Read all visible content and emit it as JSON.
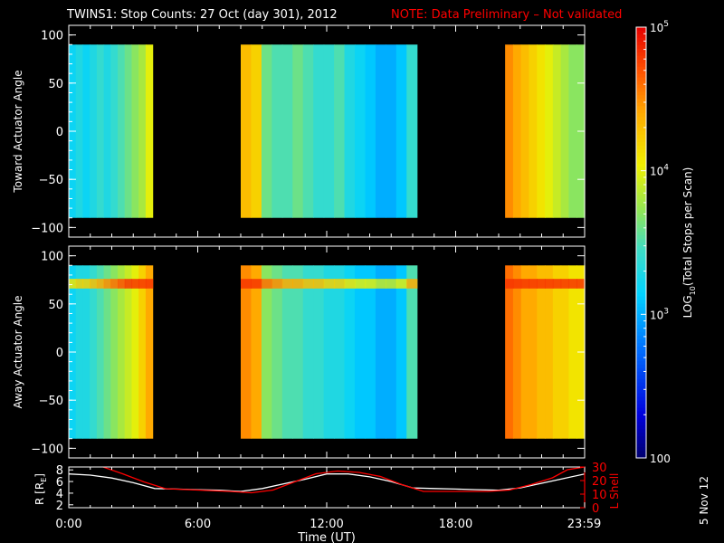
{
  "title": {
    "main": "TWINS1: Stop Counts: 27 Oct (day 301), 2012",
    "note": "NOTE: Data Preliminary – Not validated",
    "note_color": "#ff0000"
  },
  "stamp": "5 Nov 12",
  "chart_data": [
    {
      "type": "heatmap",
      "name": "toward",
      "ylabel": "Toward Actuator Angle",
      "ylim": [
        -110,
        110
      ],
      "yticks": [
        "100",
        "50",
        "0",
        "−50",
        "−100"
      ],
      "yticks_values": [
        100,
        50,
        0,
        -50,
        -100
      ],
      "angle_range": [
        -90,
        90
      ],
      "x_hours_range": [
        0,
        24
      ],
      "data_blocks": [
        {
          "start_h": 0.0,
          "end_h": 3.9,
          "log_counts": [
            3.2,
            3.3,
            3.2,
            3.3,
            3.4,
            3.3,
            3.4,
            3.5,
            3.6,
            3.7,
            3.8,
            4.0
          ]
        },
        {
          "start_h": 8.0,
          "end_h": 16.2,
          "log_counts": [
            4.3,
            4.2,
            3.6,
            3.5,
            3.5,
            3.6,
            3.5,
            3.4,
            3.4,
            3.5,
            3.3,
            3.2,
            3.1,
            3.0,
            3.0,
            3.1,
            3.4
          ]
        },
        {
          "start_h": 20.3,
          "end_h": 24.0,
          "log_counts": [
            4.5,
            4.4,
            4.3,
            4.2,
            4.1,
            4.0,
            3.9,
            3.8,
            3.7,
            3.7
          ]
        }
      ]
    },
    {
      "type": "heatmap",
      "name": "away",
      "ylabel": "Away Actuator Angle",
      "ylim": [
        -110,
        110
      ],
      "yticks": [
        "100",
        "50",
        "0",
        "−50",
        "−100"
      ],
      "yticks_values": [
        100,
        50,
        0,
        -50,
        -100
      ],
      "angle_range": [
        -90,
        90
      ],
      "x_hours_range": [
        0,
        24
      ],
      "data_blocks": [
        {
          "start_h": 0.0,
          "end_h": 3.9,
          "log_counts": [
            3.2,
            3.3,
            3.3,
            3.4,
            3.5,
            3.6,
            3.7,
            3.8,
            3.9,
            4.0,
            4.2,
            4.4
          ]
        },
        {
          "start_h": 8.0,
          "end_h": 16.2,
          "log_counts": [
            4.5,
            4.4,
            3.7,
            3.6,
            3.5,
            3.5,
            3.4,
            3.4,
            3.3,
            3.3,
            3.2,
            3.1,
            3.1,
            3.0,
            3.0,
            3.1,
            3.5
          ]
        },
        {
          "start_h": 20.3,
          "end_h": 24.0,
          "log_counts": [
            4.6,
            4.5,
            4.4,
            4.4,
            4.3,
            4.3,
            4.2,
            4.2,
            4.1,
            4.1
          ]
        }
      ]
    },
    {
      "type": "line",
      "name": "orbit",
      "ylabel": "R [R",
      "ylabel_sub": "E",
      "ylabel_close": "]",
      "ylim": [
        1.5,
        8.5
      ],
      "yticks": [
        "8",
        "6",
        "4",
        "2"
      ],
      "yticks_values": [
        8,
        6,
        4,
        2
      ],
      "y2label": "L Shell",
      "y2lim": [
        0,
        30
      ],
      "y2ticks": [
        "30",
        "20",
        "10",
        "0"
      ],
      "y2ticks_values": [
        30,
        20,
        10,
        0
      ],
      "y2_color": "#ff0000",
      "xlabel": "Time (UT)",
      "xticks": [
        "0:00",
        "6:00",
        "12:00",
        "18:00",
        "23:59"
      ],
      "xticks_hours": [
        0,
        6,
        12,
        18,
        23.98
      ],
      "series": [
        {
          "axis": "left",
          "color": "#ffffff",
          "x": [
            0,
            1,
            2,
            3,
            4,
            5,
            6,
            7,
            8,
            9,
            10,
            11,
            12,
            13,
            14,
            15,
            16,
            17,
            18,
            19,
            20,
            21,
            22,
            23,
            24
          ],
          "y": [
            7.3,
            7.1,
            6.6,
            5.8,
            4.8,
            4.7,
            4.6,
            4.5,
            4.3,
            4.8,
            5.6,
            6.4,
            7.3,
            7.3,
            6.8,
            6.0,
            4.9,
            4.8,
            4.7,
            4.6,
            4.5,
            4.9,
            5.7,
            6.5,
            7.3
          ]
        },
        {
          "axis": "right",
          "color": "#ff0000",
          "x": [
            1.6,
            2.5,
            3.5,
            4.5,
            6,
            7.5,
            8.5,
            9.5,
            10.5,
            11.5,
            12.5,
            13.5,
            14.5,
            15.5,
            16.5,
            18,
            19.5,
            20.5,
            21.5,
            22.5,
            23.2,
            24
          ],
          "y": [
            30,
            25,
            19,
            14,
            13,
            12,
            11,
            13,
            19,
            25,
            27,
            26,
            23,
            17,
            12,
            12,
            12,
            13,
            17,
            22,
            28,
            30
          ]
        }
      ]
    },
    {
      "type": "colorbar",
      "label_prefix": "LOG",
      "label_sub": "10",
      "label_rest": "(Total Stops per Scan)",
      "scale": "log",
      "range": [
        100,
        100000
      ],
      "ticks": [
        {
          "value": 100000,
          "base": "10",
          "exp": "5"
        },
        {
          "value": 10000,
          "base": "10",
          "exp": "4"
        },
        {
          "value": 1000,
          "base": "10",
          "exp": "3"
        },
        {
          "value": 100,
          "base": "100",
          "exp": ""
        }
      ]
    }
  ]
}
